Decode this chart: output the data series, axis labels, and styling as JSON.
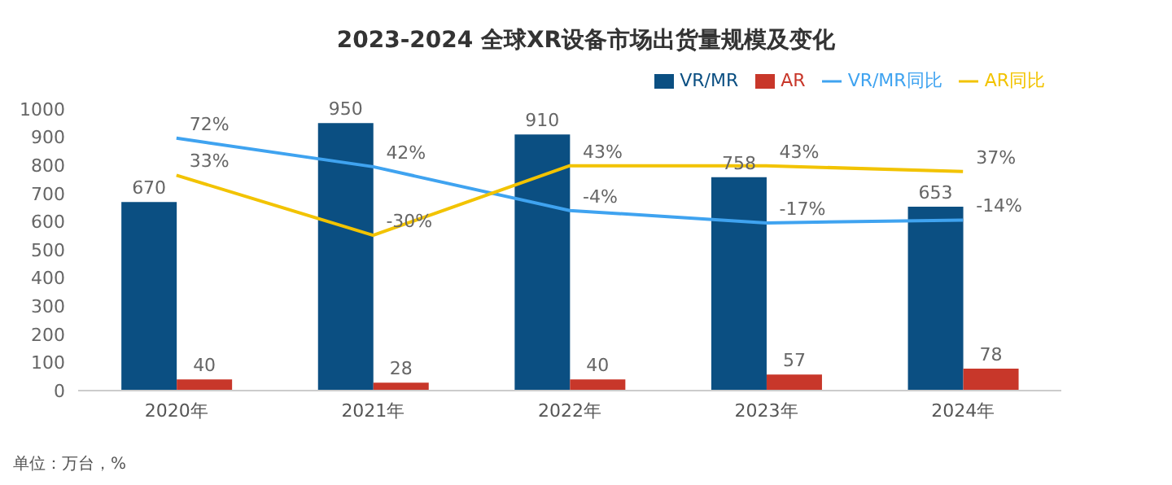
{
  "chart_data": {
    "type": "bar",
    "title": "2023-2024  全球XR设备市场出货量规模及变化",
    "categories": [
      "2020年",
      "2021年",
      "2022年",
      "2023年",
      "2024年"
    ],
    "series": [
      {
        "name": "VR/MR",
        "color": "#0b4f82",
        "values": [
          670,
          950,
          910,
          758,
          653
        ],
        "value_labels": [
          "670",
          "950",
          "910",
          "758",
          "653"
        ]
      },
      {
        "name": "AR",
        "color": "#c8372a",
        "values": [
          40,
          28,
          40,
          57,
          78
        ],
        "value_labels": [
          "40",
          "28",
          "40",
          "57",
          "78"
        ]
      },
      {
        "name": "VR/MR同比",
        "type": "line",
        "axis": "y2",
        "color": "#3fa3f0",
        "values": [
          72,
          42,
          -4,
          -17,
          -14
        ],
        "value_labels": [
          "72%",
          "42%",
          "-4%",
          "-17%",
          "-14%"
        ]
      },
      {
        "name": "AR同比",
        "type": "line",
        "axis": "y2",
        "color": "#f2c300",
        "values": [
          33,
          -30,
          43,
          43,
          37
        ],
        "value_labels": [
          "33%",
          "-30%",
          "43%",
          "43%",
          "37%"
        ]
      }
    ],
    "ylim": [
      0,
      1000
    ],
    "yticks": [
      0,
      100,
      200,
      300,
      400,
      500,
      600,
      700,
      800,
      900,
      1000
    ],
    "legend": "top right",
    "grid": false,
    "marker": "none",
    "annotations": [
      "单位：万台，%"
    ]
  }
}
